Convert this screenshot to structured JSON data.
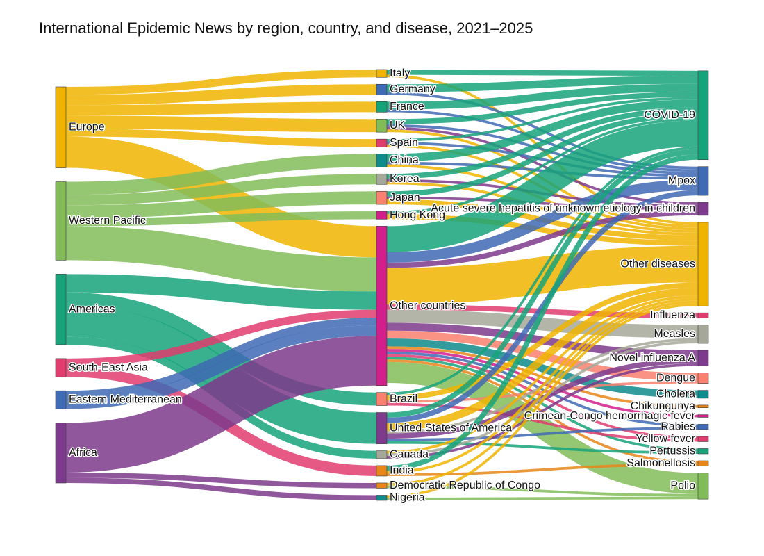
{
  "chart_data": {
    "type": "sankey",
    "title": "International Epidemic News by region, country, and disease, 2021–2025",
    "columns": [
      [
        "Europe",
        "Western Pacific",
        "Americas",
        "South-East Asia",
        "Eastern Mediterranean",
        "Africa"
      ],
      [
        "Italy",
        "Germany",
        "France",
        "UK",
        "Spain",
        "China",
        "Korea",
        "Japan",
        "Hong Kong",
        "Other countries",
        "Brazil",
        "United States of America",
        "Canada",
        "India",
        "Democratic Republic of Congo",
        "Nigeria"
      ],
      [
        "COVID-19",
        "Mpox",
        "Acute severe hepatitis of unknown etiology in children",
        "Other diseases",
        "Influenza",
        "Measles",
        "Novel influenza A",
        "Dengue",
        "Cholera",
        "Chikungunya",
        "Crimean-Congo hemorrhagic fever",
        "Rabies",
        "Yellow fever",
        "Pertussis",
        "Salmonellosis",
        "Polio"
      ]
    ],
    "colors": {
      "Europe": "#f0b400",
      "Western Pacific": "#82bc59",
      "Americas": "#17a37a",
      "South-East Asia": "#e03c6e",
      "Eastern Mediterranean": "#3f6ab4",
      "Africa": "#7e3a8c",
      "Italy": "#f0b400",
      "Germany": "#3f6ab4",
      "France": "#17a37a",
      "UK": "#82bc59",
      "Spain": "#e03c6e",
      "China": "#0e8b8b",
      "Korea": "#a5a898",
      "Japan": "#fa8070",
      "Hong Kong": "#d21f8c",
      "Other countries": "#d21f8c",
      "Brazil": "#fa8070",
      "United States of America": "#7e3a8c",
      "Canada": "#a5a898",
      "India": "#e8861a",
      "Democratic Republic of Congo": "#e8861a",
      "Nigeria": "#0e8b8b",
      "COVID-19": "#17a37a",
      "Mpox": "#3f6ab4",
      "Acute severe hepatitis of unknown etiology in children": "#7e3a8c",
      "Other diseases": "#f0b400",
      "Influenza": "#e03c6e",
      "Measles": "#a5a898",
      "Novel influenza A": "#7e3a8c",
      "Dengue": "#fa8070",
      "Cholera": "#0e8b8b",
      "Chikungunya": "#e8861a",
      "Crimean-Congo hemorrhagic fever": "#d21f8c",
      "Rabies": "#3f6ab4",
      "Yellow fever": "#e03c6e",
      "Pertussis": "#17a37a",
      "Salmonellosis": "#e8861a",
      "Polio": "#82bc59"
    },
    "links": [
      {
        "source": "Europe",
        "target": "Italy",
        "value": 3
      },
      {
        "source": "Europe",
        "target": "Germany",
        "value": 4
      },
      {
        "source": "Europe",
        "target": "France",
        "value": 4
      },
      {
        "source": "Europe",
        "target": "UK",
        "value": 5
      },
      {
        "source": "Europe",
        "target": "Spain",
        "value": 3
      },
      {
        "source": "Europe",
        "target": "Other countries",
        "value": 12
      },
      {
        "source": "Western Pacific",
        "target": "China",
        "value": 5
      },
      {
        "source": "Western Pacific",
        "target": "Korea",
        "value": 4
      },
      {
        "source": "Western Pacific",
        "target": "Japan",
        "value": 5
      },
      {
        "source": "Western Pacific",
        "target": "Hong Kong",
        "value": 3
      },
      {
        "source": "Western Pacific",
        "target": "Other countries",
        "value": 13
      },
      {
        "source": "Americas",
        "target": "Other countries",
        "value": 7
      },
      {
        "source": "Americas",
        "target": "Brazil",
        "value": 5
      },
      {
        "source": "Americas",
        "target": "United States of America",
        "value": 12
      },
      {
        "source": "Americas",
        "target": "Canada",
        "value": 3
      },
      {
        "source": "South-East Asia",
        "target": "Other countries",
        "value": 3
      },
      {
        "source": "South-East Asia",
        "target": "India",
        "value": 4
      },
      {
        "source": "Eastern Mediterranean",
        "target": "Other countries",
        "value": 3
      },
      {
        "source": "Eastern Mediterranean",
        "target": "Other countries",
        "value": 4
      },
      {
        "source": "Africa",
        "target": "Other countries",
        "value": 19
      },
      {
        "source": "Africa",
        "target": "Democratic Republic of Congo",
        "value": 2
      },
      {
        "source": "Africa",
        "target": "Nigeria",
        "value": 2
      },
      {
        "source": "Italy",
        "target": "COVID-19",
        "value": 2
      },
      {
        "source": "Italy",
        "target": "Other diseases",
        "value": 1
      },
      {
        "source": "Germany",
        "target": "COVID-19",
        "value": 3
      },
      {
        "source": "Germany",
        "target": "Mpox",
        "value": 1
      },
      {
        "source": "France",
        "target": "COVID-19",
        "value": 3
      },
      {
        "source": "France",
        "target": "Mpox",
        "value": 1
      },
      {
        "source": "UK",
        "target": "COVID-19",
        "value": 2
      },
      {
        "source": "UK",
        "target": "Mpox",
        "value": 1
      },
      {
        "source": "UK",
        "target": "Acute severe hepatitis of unknown etiology in children",
        "value": 1
      },
      {
        "source": "UK",
        "target": "Other diseases",
        "value": 1
      },
      {
        "source": "Spain",
        "target": "COVID-19",
        "value": 1
      },
      {
        "source": "Spain",
        "target": "Mpox",
        "value": 1
      },
      {
        "source": "Spain",
        "target": "Other diseases",
        "value": 1
      },
      {
        "source": "China",
        "target": "COVID-19",
        "value": 3
      },
      {
        "source": "China",
        "target": "Mpox",
        "value": 1
      },
      {
        "source": "China",
        "target": "Other diseases",
        "value": 1
      },
      {
        "source": "Korea",
        "target": "COVID-19",
        "value": 2
      },
      {
        "source": "Korea",
        "target": "Acute severe hepatitis of unknown etiology in children",
        "value": 1
      },
      {
        "source": "Korea",
        "target": "Other diseases",
        "value": 1
      },
      {
        "source": "Japan",
        "target": "COVID-19",
        "value": 2
      },
      {
        "source": "Japan",
        "target": "Acute severe hepatitis of unknown etiology in children",
        "value": 1
      },
      {
        "source": "Japan",
        "target": "Other diseases",
        "value": 2
      },
      {
        "source": "Hong Kong",
        "target": "COVID-19",
        "value": 1
      },
      {
        "source": "Hong Kong",
        "target": "Other diseases",
        "value": 2
      },
      {
        "source": "Other countries",
        "target": "COVID-19",
        "value": 10
      },
      {
        "source": "Other countries",
        "target": "Mpox",
        "value": 4
      },
      {
        "source": "Other countries",
        "target": "Acute severe hepatitis of unknown etiology in children",
        "value": 2
      },
      {
        "source": "Other countries",
        "target": "Other diseases",
        "value": 14
      },
      {
        "source": "Other countries",
        "target": "Influenza",
        "value": 2
      },
      {
        "source": "Other countries",
        "target": "Measles",
        "value": 5
      },
      {
        "source": "Other countries",
        "target": "Novel influenza A",
        "value": 3
      },
      {
        "source": "Other countries",
        "target": "Dengue",
        "value": 3
      },
      {
        "source": "Other countries",
        "target": "Cholera",
        "value": 3
      },
      {
        "source": "Other countries",
        "target": "Chikungunya",
        "value": 1
      },
      {
        "source": "Other countries",
        "target": "Crimean-Congo hemorrhagic fever",
        "value": 1
      },
      {
        "source": "Other countries",
        "target": "Rabies",
        "value": 1
      },
      {
        "source": "Other countries",
        "target": "Yellow fever",
        "value": 1
      },
      {
        "source": "Other countries",
        "target": "Pertussis",
        "value": 1
      },
      {
        "source": "Other countries",
        "target": "Salmonellosis",
        "value": 1
      },
      {
        "source": "Other countries",
        "target": "Polio",
        "value": 8
      },
      {
        "source": "Brazil",
        "target": "COVID-19",
        "value": 1
      },
      {
        "source": "Brazil",
        "target": "Other diseases",
        "value": 2
      },
      {
        "source": "Brazil",
        "target": "Yellow fever",
        "value": 1
      },
      {
        "source": "Brazil",
        "target": "Dengue",
        "value": 1
      },
      {
        "source": "United States of America",
        "target": "COVID-19",
        "value": 2
      },
      {
        "source": "United States of America",
        "target": "Mpox",
        "value": 2
      },
      {
        "source": "United States of America",
        "target": "Other diseases",
        "value": 3
      },
      {
        "source": "United States of America",
        "target": "Measles",
        "value": 1
      },
      {
        "source": "United States of America",
        "target": "Novel influenza A",
        "value": 2
      },
      {
        "source": "United States of America",
        "target": "Rabies",
        "value": 1
      },
      {
        "source": "United States of America",
        "target": "Pertussis",
        "value": 1
      },
      {
        "source": "Canada",
        "target": "Other diseases",
        "value": 1
      },
      {
        "source": "Canada",
        "target": "Measles",
        "value": 1
      },
      {
        "source": "Canada",
        "target": "Novel influenza A",
        "value": 1
      },
      {
        "source": "India",
        "target": "COVID-19",
        "value": 2
      },
      {
        "source": "India",
        "target": "Other diseases",
        "value": 1
      },
      {
        "source": "India",
        "target": "Salmonellosis",
        "value": 1
      },
      {
        "source": "Democratic Republic of Congo",
        "target": "Other diseases",
        "value": 1
      },
      {
        "source": "Democratic Republic of Congo",
        "target": "Polio",
        "value": 1
      },
      {
        "source": "Nigeria",
        "target": "Other diseases",
        "value": 1
      },
      {
        "source": "Nigeria",
        "target": "Polio",
        "value": 1
      }
    ]
  }
}
